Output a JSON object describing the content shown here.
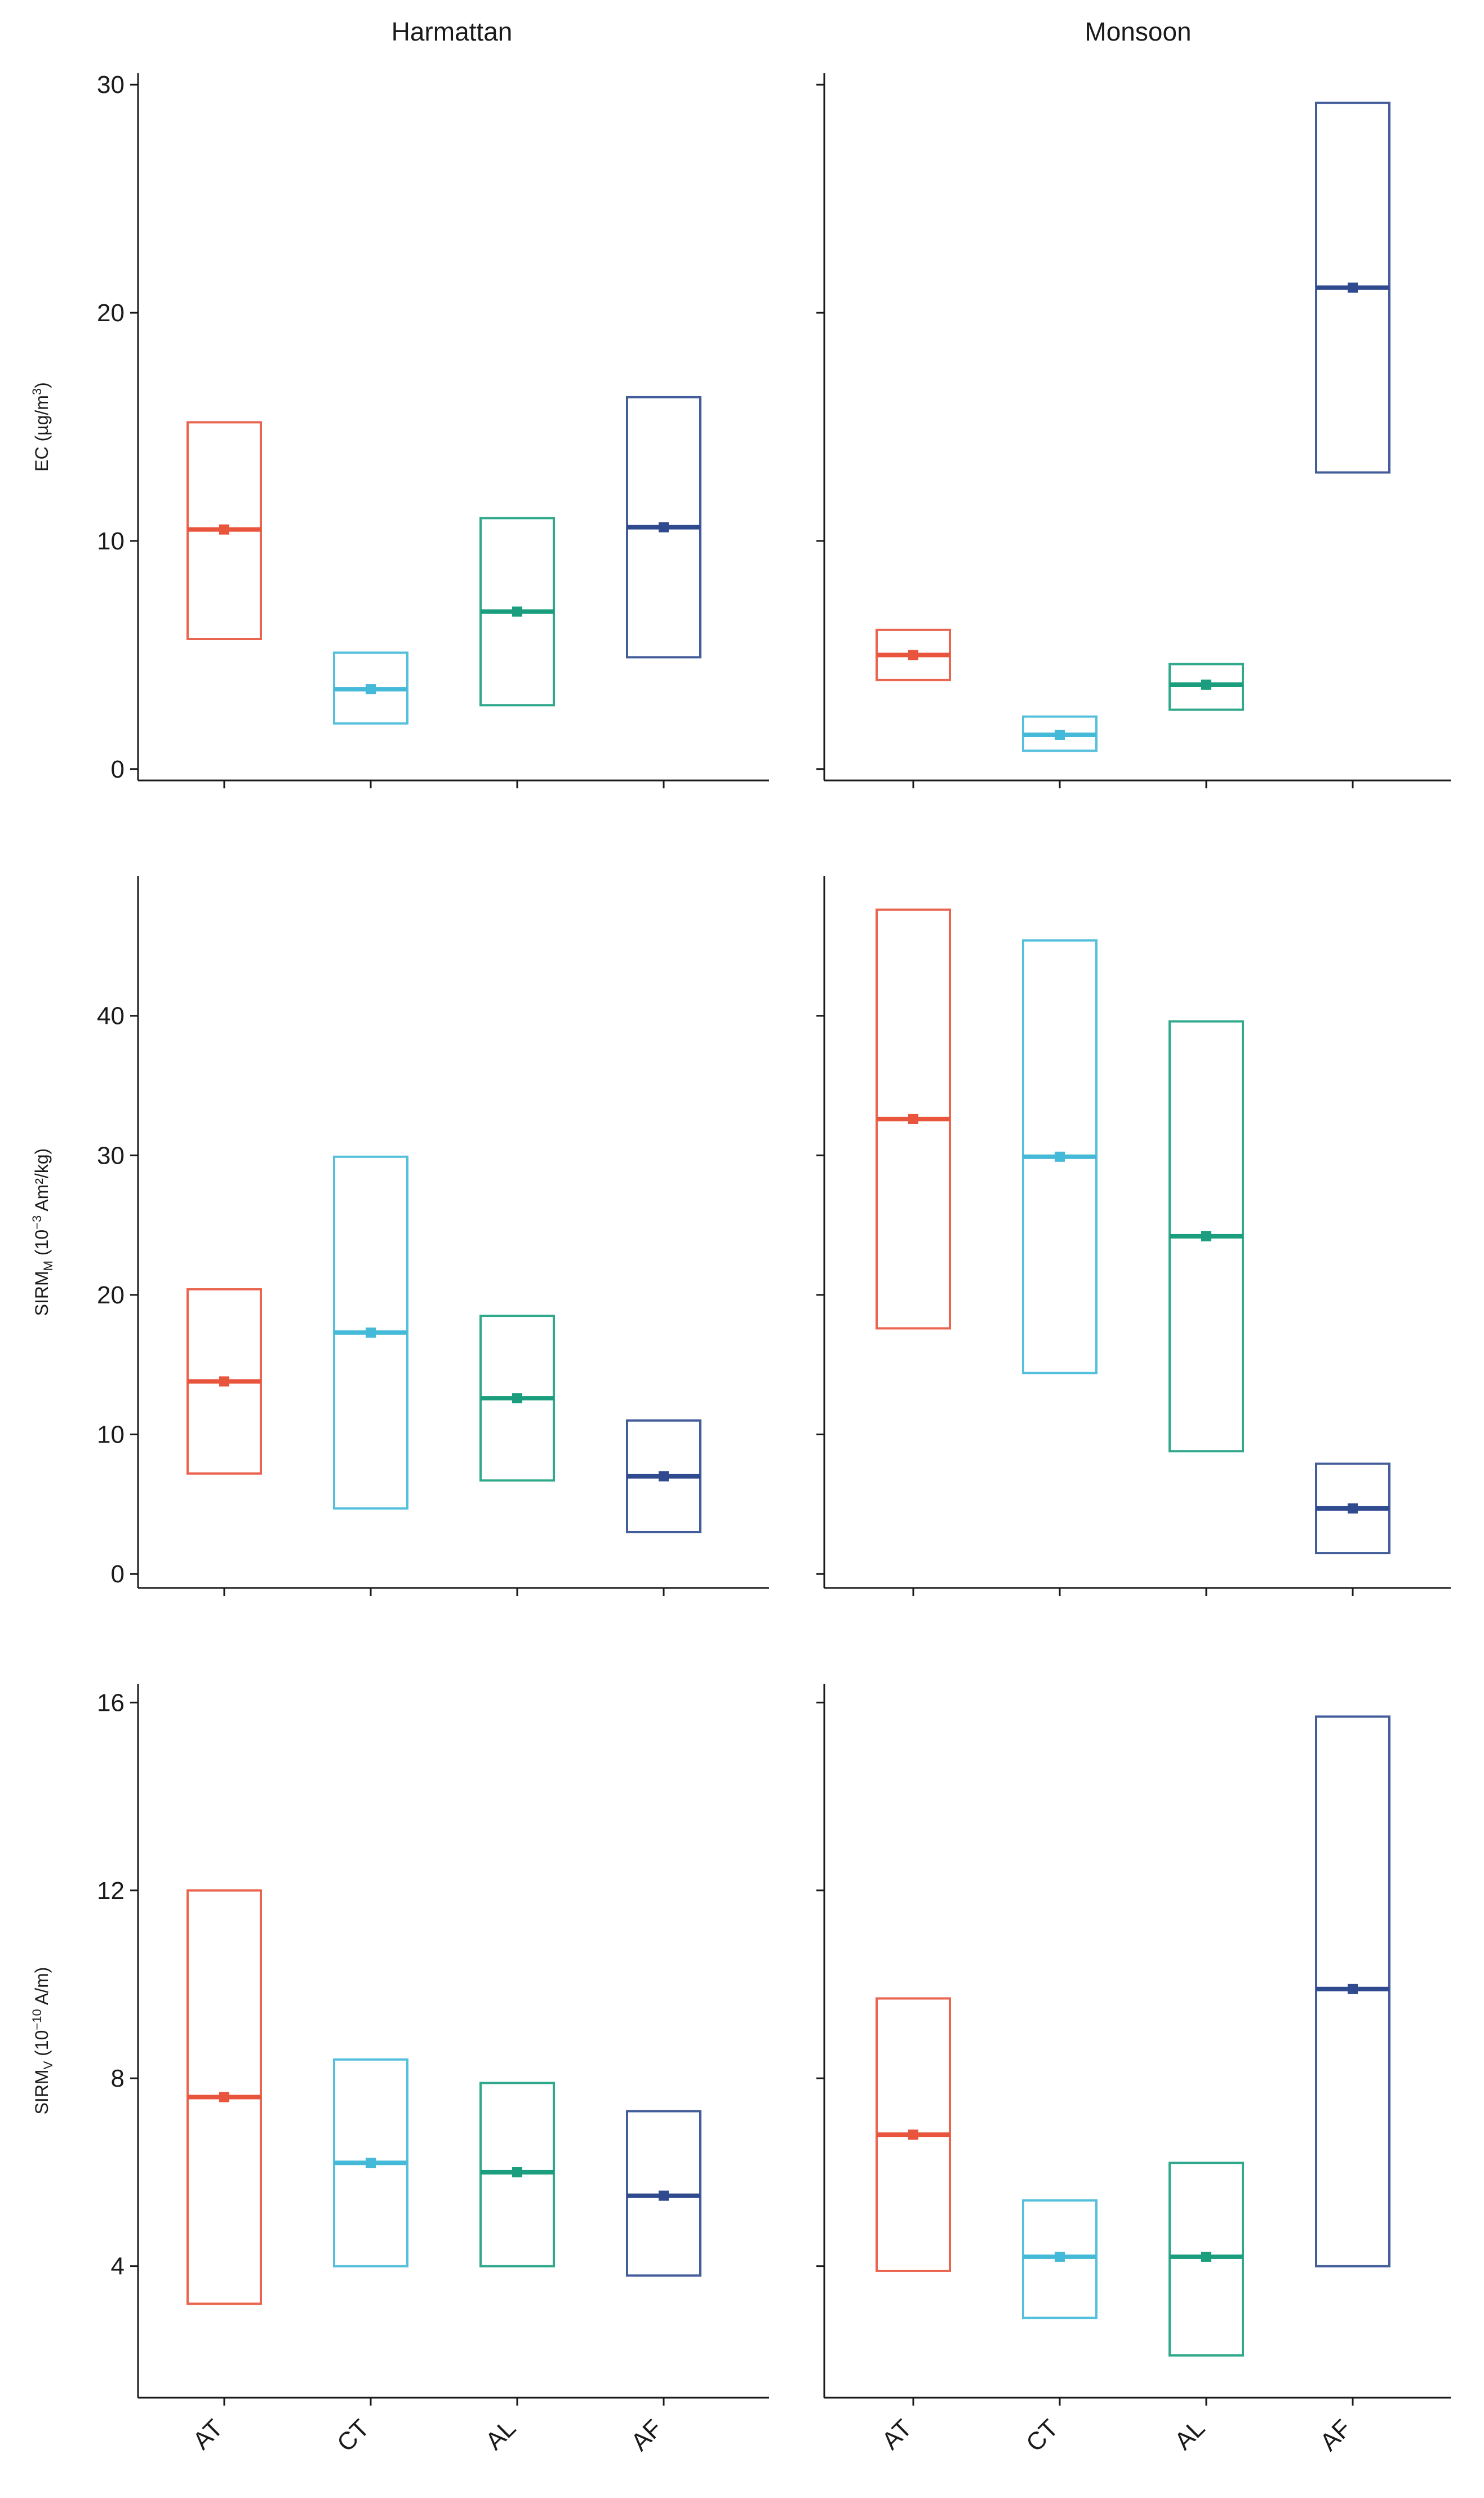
{
  "colors": {
    "AT": "#e8543c",
    "CT": "#44b9d8",
    "AL": "#1a9e7e",
    "AF": "#2f4a8f"
  },
  "chart_data": {
    "type": "crossbar",
    "categories": [
      "AT",
      "CT",
      "AL",
      "AF"
    ],
    "columns": [
      "Harmattan",
      "Monsoon"
    ],
    "rows": [
      {
        "ylabel": {
          "main": "EC (µg/m",
          "sup": "3",
          "end": ")"
        },
        "ylim": [
          -0.5,
          30.5
        ],
        "ticks": [
          0,
          10,
          20,
          30
        ],
        "tick_labels": [
          "0",
          "10",
          "20",
          "30"
        ],
        "panels": [
          {
            "column": "Harmattan",
            "points": [
              {
                "category": "AT",
                "low": 5.7,
                "mid": 10.5,
                "high": 15.2
              },
              {
                "category": "CT",
                "low": 2.0,
                "mid": 3.5,
                "high": 5.1
              },
              {
                "category": "AL",
                "low": 2.8,
                "mid": 6.9,
                "high": 11.0
              },
              {
                "category": "AF",
                "low": 4.9,
                "mid": 10.6,
                "high": 16.3
              }
            ]
          },
          {
            "column": "Monsoon",
            "points": [
              {
                "category": "AT",
                "low": 3.9,
                "mid": 5.0,
                "high": 6.1
              },
              {
                "category": "CT",
                "low": 0.8,
                "mid": 1.5,
                "high": 2.3
              },
              {
                "category": "AL",
                "low": 2.6,
                "mid": 3.7,
                "high": 4.6
              },
              {
                "category": "AF",
                "low": 13.0,
                "mid": 21.1,
                "high": 29.2
              }
            ]
          }
        ]
      },
      {
        "ylabel": {
          "main": "SIRM",
          "sub": "M",
          "mid": " (10",
          "sup": "−3",
          "end": " Am²/kg)"
        },
        "ylim": [
          -1,
          50
        ],
        "ticks": [
          0,
          10,
          20,
          30,
          40
        ],
        "tick_labels": [
          "0",
          "10",
          "20",
          "30",
          "40"
        ],
        "panels": [
          {
            "column": "Harmattan",
            "points": [
              {
                "category": "AT",
                "low": 7.2,
                "mid": 13.8,
                "high": 20.4
              },
              {
                "category": "CT",
                "low": 4.7,
                "mid": 17.3,
                "high": 29.9
              },
              {
                "category": "AL",
                "low": 6.7,
                "mid": 12.6,
                "high": 18.5
              },
              {
                "category": "AF",
                "low": 3.0,
                "mid": 7.0,
                "high": 11.0
              }
            ]
          },
          {
            "column": "Monsoon",
            "points": [
              {
                "category": "AT",
                "low": 17.6,
                "mid": 32.6,
                "high": 47.6
              },
              {
                "category": "CT",
                "low": 14.4,
                "mid": 29.9,
                "high": 45.4
              },
              {
                "category": "AL",
                "low": 8.8,
                "mid": 24.2,
                "high": 39.6
              },
              {
                "category": "AF",
                "low": 1.5,
                "mid": 4.7,
                "high": 7.9
              }
            ]
          }
        ]
      },
      {
        "ylabel": {
          "main": "SIRM",
          "sub": "V",
          "mid": " (10",
          "sup": "−10",
          "end": " A/m)"
        },
        "ylim": [
          1.2,
          16.4
        ],
        "ticks": [
          4,
          8,
          12,
          16
        ],
        "tick_labels": [
          "4",
          "8",
          "12",
          "16"
        ],
        "panels": [
          {
            "column": "Harmattan",
            "points": [
              {
                "category": "AT",
                "low": 3.2,
                "mid": 7.6,
                "high": 12.0
              },
              {
                "category": "CT",
                "low": 4.0,
                "mid": 6.2,
                "high": 8.4
              },
              {
                "category": "AL",
                "low": 4.0,
                "mid": 6.0,
                "high": 7.9
              },
              {
                "category": "AF",
                "low": 3.8,
                "mid": 5.5,
                "high": 7.3
              }
            ]
          },
          {
            "column": "Monsoon",
            "points": [
              {
                "category": "AT",
                "low": 3.9,
                "mid": 6.8,
                "high": 9.7
              },
              {
                "category": "CT",
                "low": 2.9,
                "mid": 4.2,
                "high": 5.4
              },
              {
                "category": "AL",
                "low": 2.1,
                "mid": 4.2,
                "high": 6.2
              },
              {
                "category": "AF",
                "low": 4.0,
                "mid": 9.9,
                "high": 15.7
              }
            ]
          }
        ]
      }
    ]
  }
}
